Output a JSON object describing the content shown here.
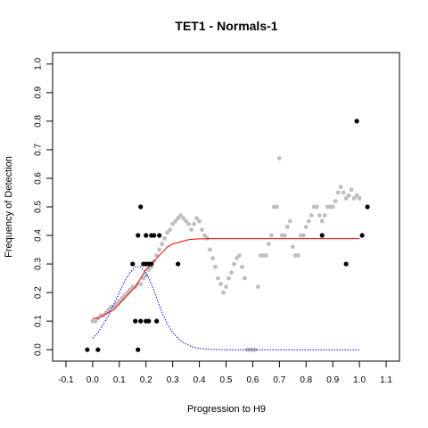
{
  "chart_data": {
    "type": "scatter",
    "title": "TET1 - Normals-1",
    "xlabel": "Progression to H9",
    "ylabel": "Frequency of Detection",
    "xlim": [
      -0.15,
      1.15
    ],
    "ylim": [
      -0.04,
      1.04
    ],
    "x_ticks": [
      -0.1,
      0,
      0.1,
      0.2,
      0.3,
      0.4,
      0.5,
      0.6,
      0.7,
      0.8,
      0.9,
      1,
      1.1
    ],
    "x_tick_labels": [
      "-0.1",
      "0.0",
      "0.1",
      "0.2",
      "0.3",
      "0.4",
      "0.5",
      "0.6",
      "0.7",
      "0.8",
      "0.9",
      "1.0",
      "1.1"
    ],
    "y_ticks": [
      0,
      0.1,
      0.2,
      0.3,
      0.4,
      0.5,
      0.6,
      0.7,
      0.8,
      0.9,
      1
    ],
    "y_tick_labels": [
      "0.0",
      "0.1",
      "0.2",
      "0.3",
      "0.4",
      "0.5",
      "0.6",
      "0.7",
      "0.8",
      "0.9",
      "1.0"
    ],
    "grid": false,
    "colors": {
      "observed": "#000000",
      "smoothed": "#bebebe",
      "fit": "#ff0000",
      "density": "#0000ff"
    },
    "series": [
      {
        "kind": "points",
        "color": "#000000",
        "x": [
          -0.02,
          0.02,
          0.15,
          0.16,
          0.17,
          0.17,
          0.18,
          0.18,
          0.19,
          0.2,
          0.2,
          0.2,
          0.21,
          0.21,
          0.22,
          0.22,
          0.23,
          0.24,
          0.25,
          0.32,
          0.86,
          0.95,
          0.99,
          1.01,
          1.03
        ],
        "y": [
          0.0,
          0.0,
          0.3,
          0.1,
          0.4,
          0.0,
          0.5,
          0.1,
          0.3,
          0.3,
          0.1,
          0.4,
          0.3,
          0.1,
          0.4,
          0.3,
          0.4,
          0.1,
          0.4,
          0.3,
          0.4,
          0.3,
          0.8,
          0.4,
          0.5
        ]
      },
      {
        "kind": "smoothed-points",
        "color": "#bebebe",
        "x": [
          0.0,
          0.01,
          0.02,
          0.03,
          0.04,
          0.05,
          0.06,
          0.07,
          0.08,
          0.09,
          0.1,
          0.11,
          0.12,
          0.13,
          0.14,
          0.15,
          0.16,
          0.17,
          0.18,
          0.19,
          0.2,
          0.21,
          0.22,
          0.23,
          0.24,
          0.25,
          0.26,
          0.27,
          0.28,
          0.29,
          0.3,
          0.31,
          0.32,
          0.33,
          0.34,
          0.35,
          0.36,
          0.37,
          0.38,
          0.39,
          0.4,
          0.41,
          0.42,
          0.43,
          0.44,
          0.45,
          0.46,
          0.47,
          0.48,
          0.49,
          0.5,
          0.51,
          0.52,
          0.53,
          0.54,
          0.55,
          0.56,
          0.57,
          0.58,
          0.59,
          0.6,
          0.61,
          0.62,
          0.63,
          0.64,
          0.65,
          0.66,
          0.67,
          0.68,
          0.69,
          0.7,
          0.71,
          0.72,
          0.73,
          0.74,
          0.75,
          0.76,
          0.77,
          0.78,
          0.79,
          0.8,
          0.81,
          0.82,
          0.83,
          0.84,
          0.85,
          0.86,
          0.87,
          0.88,
          0.89,
          0.9,
          0.91,
          0.92,
          0.93,
          0.94,
          0.95,
          0.96,
          0.97,
          0.98,
          0.99,
          1.0
        ],
        "y": [
          0.1,
          0.1,
          0.11,
          0.12,
          0.12,
          0.13,
          0.14,
          0.15,
          0.15,
          0.16,
          0.17,
          0.18,
          0.19,
          0.2,
          0.21,
          0.22,
          0.22,
          0.23,
          0.23,
          0.25,
          0.26,
          0.28,
          0.29,
          0.31,
          0.33,
          0.35,
          0.37,
          0.39,
          0.41,
          0.42,
          0.44,
          0.45,
          0.46,
          0.47,
          0.46,
          0.45,
          0.44,
          0.42,
          0.44,
          0.46,
          0.45,
          0.42,
          0.4,
          0.39,
          0.35,
          0.32,
          0.29,
          0.25,
          0.23,
          0.2,
          0.22,
          0.25,
          0.27,
          0.3,
          0.32,
          0.33,
          0.29,
          0.25,
          0.0,
          0.0,
          0.0,
          0.0,
          0.22,
          0.33,
          0.33,
          0.33,
          0.37,
          0.4,
          0.5,
          0.5,
          0.67,
          0.4,
          0.4,
          0.43,
          0.45,
          0.36,
          0.33,
          0.33,
          0.4,
          0.4,
          0.43,
          0.45,
          0.47,
          0.5,
          0.5,
          0.47,
          0.45,
          0.47,
          0.5,
          0.5,
          0.5,
          0.52,
          0.55,
          0.57,
          0.55,
          0.53,
          0.54,
          0.56,
          0.53,
          0.54,
          0.53
        ]
      },
      {
        "kind": "fit-line",
        "color": "#ff0000",
        "x": [
          0.0,
          0.02,
          0.04,
          0.06,
          0.08,
          0.1,
          0.12,
          0.14,
          0.16,
          0.18,
          0.2,
          0.22,
          0.24,
          0.26,
          0.28,
          0.3,
          0.32,
          0.34,
          0.36,
          0.38,
          0.4,
          0.45,
          0.5,
          0.6,
          0.7,
          0.8,
          0.9,
          1.0
        ],
        "y": [
          0.11,
          0.11,
          0.12,
          0.13,
          0.14,
          0.16,
          0.18,
          0.2,
          0.22,
          0.25,
          0.28,
          0.3,
          0.32,
          0.34,
          0.36,
          0.37,
          0.375,
          0.38,
          0.385,
          0.387,
          0.388,
          0.389,
          0.389,
          0.389,
          0.389,
          0.389,
          0.389,
          0.389
        ]
      },
      {
        "kind": "density-line",
        "color": "#0000ff",
        "x": [
          0.0,
          0.02,
          0.04,
          0.06,
          0.08,
          0.1,
          0.12,
          0.14,
          0.16,
          0.18,
          0.2,
          0.22,
          0.24,
          0.26,
          0.28,
          0.3,
          0.32,
          0.34,
          0.36,
          0.38,
          0.4,
          0.45,
          0.5,
          0.6,
          0.7,
          0.8,
          0.9,
          1.0
        ],
        "y": [
          0.04,
          0.06,
          0.09,
          0.12,
          0.16,
          0.2,
          0.24,
          0.27,
          0.29,
          0.29,
          0.27,
          0.23,
          0.18,
          0.13,
          0.09,
          0.06,
          0.04,
          0.025,
          0.015,
          0.008,
          0.004,
          0.001,
          0.0,
          0.0,
          0.0,
          0.0,
          0.0,
          0.0
        ]
      }
    ]
  }
}
